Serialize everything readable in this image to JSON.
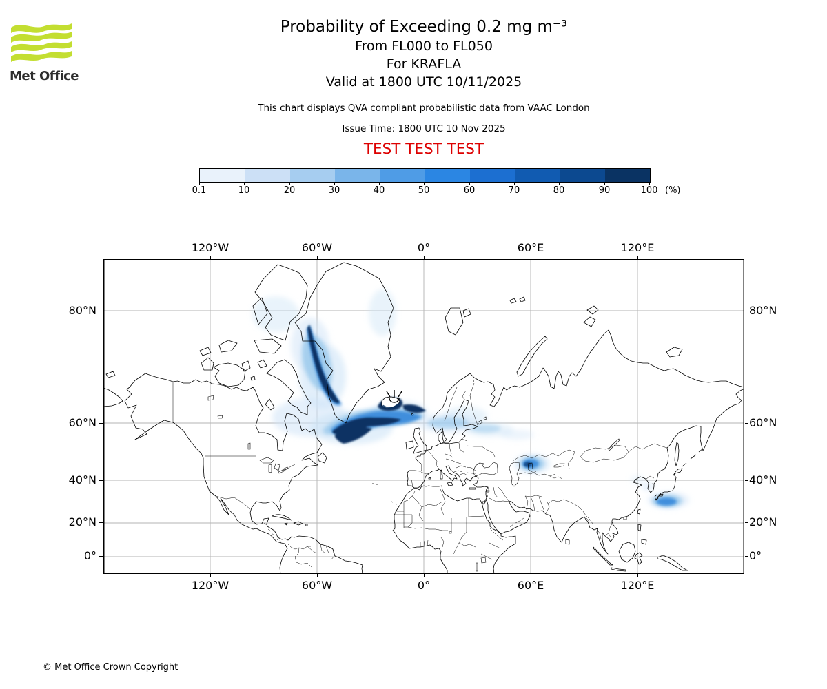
{
  "logo": {
    "text": "Met Office",
    "green": "#c3de31"
  },
  "header": {
    "title": "Probability of Exceeding 0.2 mg m⁻³",
    "subtitle1": "From FL000 to FL050",
    "subtitle2": "For KRAFLA",
    "subtitle3": "Valid at 1800 UTC 10/11/2025",
    "description": "This chart displays QVA compliant probabilistic data from VAAC London",
    "issue_time": "Issue Time: 1800 UTC 10 Nov 2025",
    "test_banner": "TEST TEST TEST",
    "test_color": "#dd0000"
  },
  "colorbar": {
    "ticks": [
      "0.1",
      "10",
      "20",
      "30",
      "40",
      "50",
      "60",
      "70",
      "80",
      "90",
      "100"
    ],
    "unit": "(%)",
    "colors": [
      "#e9f2fb",
      "#cce0f6",
      "#a6cdf0",
      "#7ab5ea",
      "#4f9ce6",
      "#2b86e3",
      "#1c6fd1",
      "#115bb1",
      "#0c4990",
      "#0a3363"
    ]
  },
  "map": {
    "xticks": [
      "120°W",
      "60°W",
      "0°",
      "60°E",
      "120°E"
    ],
    "yticks": [
      "80°N",
      "60°N",
      "40°N",
      "20°N",
      "0°"
    ],
    "grid_color": "#b3b3b3",
    "volcano_name": "KRAFLA"
  },
  "footer": {
    "copyright": "© Met Office Crown Copyright"
  },
  "chart_data": {
    "type": "probability_map",
    "projection": "mercator",
    "extent": {
      "lon_deg": [
        -180,
        180
      ],
      "lat_deg": [
        -9,
        84
      ]
    },
    "threshold": "0.2 mg m⁻³",
    "flight_levels": "FL000 to FL050",
    "volcano": {
      "name": "KRAFLA",
      "lat": 65.7,
      "lon": -16.8
    },
    "valid_time": "1800 UTC 10/11/2025",
    "issue_time": "1800 UTC 10 Nov 2025",
    "source": "VAAC London",
    "probability_bins_percent": [
      0.1,
      10,
      20,
      30,
      40,
      50,
      60,
      70,
      80,
      90,
      100
    ],
    "bin_colors": [
      "#e9f2fb",
      "#cce0f6",
      "#a6cdf0",
      "#7ab5ea",
      "#4f9ce6",
      "#2b86e3",
      "#1c6fd1",
      "#115bb1",
      "#0c4990",
      "#0a3363"
    ],
    "high_probability_regions": [
      "Baffin Bay / Davis Strait along west Greenland coast",
      "South of Greenland around Cape Farewell",
      "Around and southwest of Iceland (near source volcano)",
      "Tail extending east across Scandinavia into northwest Russia (low probability)",
      "Detached patch over northern Kazakhstan",
      "Detached patch south of Korea / Japan"
    ]
  }
}
